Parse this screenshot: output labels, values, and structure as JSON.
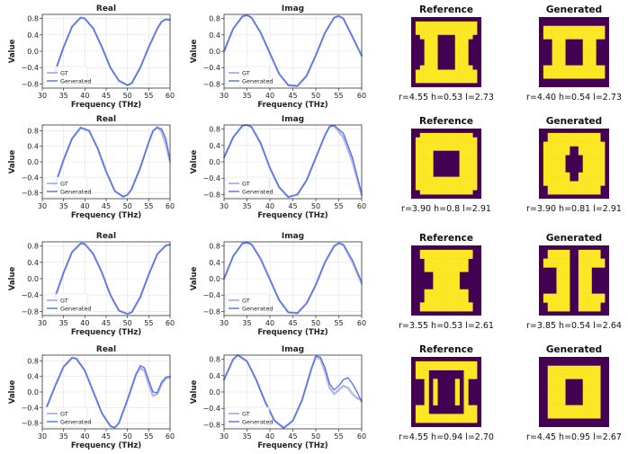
{
  "figure": {
    "legend_labels": [
      "GT",
      "Generated"
    ],
    "colors": {
      "gt": "#b7b5ea",
      "generated": "#4a72e6",
      "grid": "#e2e2e2",
      "pattern_bg": "#440154",
      "pattern_fg": "#fde725"
    }
  },
  "chart_data": [
    {
      "row": 1,
      "type": "line",
      "title": "Real",
      "xlabel": "Frequency (THz)",
      "ylabel": "Value",
      "xlim": [
        30,
        60
      ],
      "ylim": [
        -0.9,
        0.9
      ],
      "xticks": [
        30,
        35,
        40,
        45,
        50,
        55,
        60
      ],
      "yticks": [
        -0.8,
        -0.4,
        0.0,
        0.4,
        0.8
      ],
      "legend": "lower-left",
      "series": [
        {
          "name": "GT",
          "x": [
            33,
            35,
            37,
            39,
            40,
            42,
            44,
            46,
            48,
            50,
            51,
            53,
            55,
            57,
            58,
            59,
            60
          ],
          "y": [
            -0.5,
            0.1,
            0.6,
            0.82,
            0.8,
            0.55,
            0.1,
            -0.4,
            -0.72,
            -0.83,
            -0.78,
            -0.4,
            0.1,
            0.55,
            0.72,
            0.78,
            0.77
          ]
        },
        {
          "name": "Generated",
          "x": [
            33,
            35,
            37,
            39,
            40,
            42,
            44,
            46,
            48,
            50,
            51,
            53,
            55,
            57,
            58,
            59,
            60
          ],
          "y": [
            -0.5,
            0.1,
            0.6,
            0.82,
            0.8,
            0.55,
            0.1,
            -0.4,
            -0.72,
            -0.83,
            -0.78,
            -0.4,
            0.1,
            0.55,
            0.72,
            0.78,
            0.76
          ]
        }
      ]
    },
    {
      "row": 1,
      "type": "line",
      "title": "Imag",
      "xlabel": "Frequency (THz)",
      "ylabel": "Value",
      "xlim": [
        30,
        60
      ],
      "ylim": [
        -0.9,
        0.9
      ],
      "xticks": [
        30,
        35,
        40,
        45,
        50,
        55,
        60
      ],
      "yticks": [
        -0.8,
        -0.4,
        0.0,
        0.4,
        0.8
      ],
      "legend": "lower-left",
      "series": [
        {
          "name": "GT",
          "x": [
            30,
            32,
            34,
            35,
            36,
            38,
            40,
            42,
            44,
            46,
            48,
            50,
            52,
            54,
            55,
            56,
            58,
            60
          ],
          "y": [
            0.0,
            0.55,
            0.85,
            0.88,
            0.82,
            0.45,
            -0.05,
            -0.55,
            -0.83,
            -0.85,
            -0.6,
            -0.1,
            0.45,
            0.82,
            0.86,
            0.8,
            0.35,
            -0.1
          ]
        },
        {
          "name": "Generated",
          "x": [
            30,
            32,
            34,
            35,
            36,
            38,
            40,
            42,
            44,
            46,
            48,
            50,
            52,
            54,
            55,
            56,
            58,
            60
          ],
          "y": [
            0.0,
            0.55,
            0.85,
            0.88,
            0.82,
            0.45,
            -0.05,
            -0.55,
            -0.83,
            -0.85,
            -0.6,
            -0.1,
            0.45,
            0.82,
            0.86,
            0.8,
            0.35,
            -0.12
          ]
        }
      ]
    },
    {
      "row": 2,
      "type": "line",
      "title": "Real",
      "xlabel": "Frequency (THz)",
      "ylabel": "Value",
      "xlim": [
        30,
        60
      ],
      "ylim": [
        -0.95,
        0.95
      ],
      "xticks": [
        30,
        35,
        40,
        45,
        50,
        55,
        60
      ],
      "yticks": [
        -0.8,
        -0.4,
        0.0,
        0.4,
        0.8
      ],
      "legend": "lower-left",
      "series": [
        {
          "name": "GT",
          "x": [
            33,
            35,
            37,
            39,
            41,
            43,
            45,
            47,
            49,
            50,
            51,
            53,
            55,
            56,
            57,
            58,
            59,
            60
          ],
          "y": [
            -0.6,
            0.05,
            0.6,
            0.88,
            0.8,
            0.35,
            -0.25,
            -0.75,
            -0.9,
            -0.85,
            -0.7,
            -0.15,
            0.5,
            0.8,
            0.9,
            0.78,
            0.45,
            0.0
          ]
        },
        {
          "name": "Generated",
          "x": [
            33,
            35,
            37,
            39,
            41,
            43,
            45,
            47,
            49,
            50,
            51,
            53,
            55,
            56,
            57,
            58,
            59,
            60
          ],
          "y": [
            -0.6,
            0.05,
            0.6,
            0.88,
            0.8,
            0.35,
            -0.25,
            -0.75,
            -0.9,
            -0.85,
            -0.7,
            -0.15,
            0.5,
            0.8,
            0.88,
            0.85,
            0.6,
            0.05
          ]
        }
      ]
    },
    {
      "row": 2,
      "type": "line",
      "title": "Imag",
      "xlabel": "Frequency (THz)",
      "ylabel": "Value",
      "xlim": [
        30,
        60
      ],
      "ylim": [
        -0.9,
        0.9
      ],
      "xticks": [
        30,
        35,
        40,
        45,
        50,
        55,
        60
      ],
      "yticks": [
        -0.8,
        -0.4,
        0.0,
        0.4,
        0.8
      ],
      "legend": "lower-left",
      "series": [
        {
          "name": "GT",
          "x": [
            30,
            32,
            34,
            35,
            36,
            38,
            40,
            42,
            44,
            46,
            48,
            50,
            52,
            53,
            54,
            56,
            58,
            60
          ],
          "y": [
            0.1,
            0.6,
            0.88,
            0.9,
            0.85,
            0.45,
            -0.15,
            -0.62,
            -0.86,
            -0.8,
            -0.45,
            0.1,
            0.65,
            0.86,
            0.88,
            0.6,
            0.0,
            -0.82
          ]
        },
        {
          "name": "Generated",
          "x": [
            30,
            32,
            34,
            35,
            36,
            38,
            40,
            42,
            44,
            46,
            48,
            50,
            52,
            53,
            54,
            56,
            58,
            60
          ],
          "y": [
            0.1,
            0.6,
            0.88,
            0.9,
            0.85,
            0.45,
            -0.15,
            -0.62,
            -0.86,
            -0.8,
            -0.45,
            0.1,
            0.65,
            0.86,
            0.89,
            0.7,
            0.1,
            -0.78
          ]
        }
      ]
    },
    {
      "row": 3,
      "type": "line",
      "title": "Real",
      "xlabel": "Frequency (THz)",
      "ylabel": "Value",
      "xlim": [
        30,
        60
      ],
      "ylim": [
        -0.9,
        0.9
      ],
      "xticks": [
        30,
        35,
        40,
        45,
        50,
        55,
        60
      ],
      "yticks": [
        -0.8,
        -0.4,
        0.0,
        0.4,
        0.8
      ],
      "legend": "lower-left",
      "series": [
        {
          "name": "GT",
          "x": [
            33,
            35,
            37,
            39,
            40,
            42,
            44,
            46,
            48,
            50,
            51,
            53,
            55,
            57,
            59,
            60
          ],
          "y": [
            -0.45,
            0.15,
            0.65,
            0.86,
            0.85,
            0.6,
            0.15,
            -0.4,
            -0.78,
            -0.86,
            -0.82,
            -0.45,
            0.1,
            0.6,
            0.82,
            0.83
          ]
        },
        {
          "name": "Generated",
          "x": [
            33,
            35,
            37,
            39,
            40,
            42,
            44,
            46,
            48,
            50,
            51,
            53,
            55,
            57,
            59,
            60
          ],
          "y": [
            -0.45,
            0.15,
            0.65,
            0.86,
            0.85,
            0.6,
            0.15,
            -0.4,
            -0.78,
            -0.86,
            -0.82,
            -0.45,
            0.1,
            0.6,
            0.8,
            0.84
          ]
        }
      ]
    },
    {
      "row": 3,
      "type": "line",
      "title": "Imag",
      "xlabel": "Frequency (THz)",
      "ylabel": "Value",
      "xlim": [
        30,
        60
      ],
      "ylim": [
        -0.9,
        0.9
      ],
      "xticks": [
        30,
        35,
        40,
        45,
        50,
        55,
        60
      ],
      "yticks": [
        -0.8,
        -0.4,
        0.0,
        0.4,
        0.8
      ],
      "legend": "lower-left",
      "series": [
        {
          "name": "GT",
          "x": [
            30,
            32,
            34,
            35,
            36,
            38,
            40,
            42,
            44,
            46,
            48,
            50,
            52,
            54,
            55,
            56,
            58,
            60
          ],
          "y": [
            0.0,
            0.55,
            0.86,
            0.88,
            0.84,
            0.48,
            -0.02,
            -0.52,
            -0.82,
            -0.84,
            -0.6,
            -0.15,
            0.4,
            0.8,
            0.86,
            0.82,
            0.4,
            -0.12
          ]
        },
        {
          "name": "Generated",
          "x": [
            30,
            32,
            34,
            35,
            36,
            38,
            40,
            42,
            44,
            46,
            48,
            50,
            52,
            54,
            55,
            56,
            58,
            60
          ],
          "y": [
            0.0,
            0.55,
            0.86,
            0.88,
            0.84,
            0.48,
            -0.02,
            -0.52,
            -0.82,
            -0.84,
            -0.6,
            -0.15,
            0.4,
            0.8,
            0.87,
            0.84,
            0.45,
            -0.08
          ]
        }
      ]
    },
    {
      "row": 4,
      "type": "line",
      "title": "Real",
      "xlabel": "Frequency (THz)",
      "ylabel": "Value",
      "xlim": [
        30,
        60
      ],
      "ylim": [
        -0.95,
        0.95
      ],
      "xticks": [
        30,
        35,
        40,
        45,
        50,
        55,
        60
      ],
      "yticks": [
        -0.8,
        -0.4,
        0.0,
        0.4,
        0.8
      ],
      "legend": "lower-left",
      "series": [
        {
          "name": "GT",
          "x": [
            31,
            33,
            35,
            37,
            38,
            40,
            42,
            44,
            46,
            47,
            48,
            50,
            52,
            53,
            54,
            55,
            56,
            57,
            58,
            59,
            60
          ],
          "y": [
            -0.4,
            0.15,
            0.65,
            0.88,
            0.86,
            0.55,
            0.0,
            -0.55,
            -0.88,
            -0.92,
            -0.8,
            -0.2,
            0.45,
            0.62,
            0.55,
            0.2,
            -0.1,
            -0.05,
            0.2,
            0.35,
            0.38
          ]
        },
        {
          "name": "Generated",
          "x": [
            31,
            33,
            35,
            37,
            38,
            40,
            42,
            44,
            46,
            47,
            48,
            50,
            52,
            53,
            54,
            55,
            56,
            57,
            58,
            59,
            60
          ],
          "y": [
            -0.4,
            0.15,
            0.65,
            0.88,
            0.86,
            0.55,
            0.0,
            -0.55,
            -0.88,
            -0.92,
            -0.8,
            -0.2,
            0.45,
            0.68,
            0.62,
            0.3,
            0.0,
            -0.02,
            0.25,
            0.38,
            0.4
          ]
        }
      ]
    },
    {
      "row": 4,
      "type": "line",
      "title": "Imag",
      "xlabel": "Frequency (THz)",
      "ylabel": "Value",
      "xlim": [
        30,
        60
      ],
      "ylim": [
        -0.9,
        0.9
      ],
      "xticks": [
        30,
        35,
        40,
        45,
        50,
        55,
        60
      ],
      "yticks": [
        -0.8,
        -0.4,
        0.0,
        0.4,
        0.8
      ],
      "legend": "lower-left",
      "series": [
        {
          "name": "GT",
          "x": [
            30,
            32,
            33,
            35,
            37,
            39,
            41,
            43,
            45,
            47,
            49,
            50,
            51,
            52,
            53,
            54,
            55,
            56,
            57,
            58,
            59,
            60
          ],
          "y": [
            0.3,
            0.8,
            0.9,
            0.75,
            0.3,
            -0.25,
            -0.7,
            -0.88,
            -0.7,
            -0.2,
            0.55,
            0.86,
            0.8,
            0.5,
            0.1,
            -0.05,
            0.05,
            0.15,
            0.1,
            -0.05,
            -0.15,
            -0.2
          ]
        },
        {
          "name": "Generated",
          "x": [
            30,
            32,
            33,
            35,
            37,
            39,
            41,
            43,
            45,
            47,
            49,
            50,
            51,
            52,
            53,
            54,
            55,
            56,
            57,
            58,
            59,
            60
          ],
          "y": [
            0.3,
            0.8,
            0.9,
            0.75,
            0.3,
            -0.25,
            -0.7,
            -0.88,
            -0.7,
            -0.2,
            0.55,
            0.88,
            0.85,
            0.6,
            0.2,
            0.05,
            0.15,
            0.3,
            0.35,
            0.2,
            0.0,
            -0.25
          ]
        }
      ]
    }
  ],
  "patterns": [
    {
      "row": 1,
      "reference": {
        "title": "Reference",
        "caption": "r=4.55  h=0.53  l=2.73"
      },
      "generated": {
        "title": "Generated",
        "caption": "r=4.40  h=0.54  l=2.73"
      }
    },
    {
      "row": 2,
      "reference": {
        "title": "Reference",
        "caption": "r=3.90  h=0.8  l=2.91"
      },
      "generated": {
        "title": "Generated",
        "caption": "r=3.90  h=0.81  l=2.91"
      }
    },
    {
      "row": 3,
      "reference": {
        "title": "Reference",
        "caption": "r=3.55  h=0.53  l=2.61"
      },
      "generated": {
        "title": "Generated",
        "caption": "r=3.85  h=0.54  l=2.64"
      }
    },
    {
      "row": 4,
      "reference": {
        "title": "Reference",
        "caption": "r=4.55  h=0.94  l=2.70"
      },
      "generated": {
        "title": "Generated",
        "caption": "r=4.45  h=0.95  l=2.67"
      }
    }
  ]
}
